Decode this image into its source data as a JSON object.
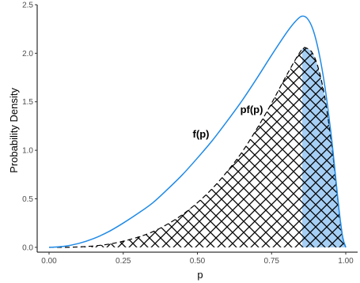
{
  "chart_data": {
    "type": "area",
    "xlabel": "p",
    "ylabel": "Probability Density",
    "xlim": [
      -0.04,
      1.04
    ],
    "ylim": [
      -0.05,
      2.5
    ],
    "x_ticks": [
      0.0,
      0.25,
      0.5,
      0.75,
      1.0
    ],
    "x_tick_labels": [
      "0.00",
      "0.25",
      "0.50",
      "0.75",
      "1.00"
    ],
    "y_ticks": [
      0.0,
      0.5,
      1.0,
      1.5,
      2.0,
      2.5
    ],
    "y_tick_labels": [
      "0.0",
      "0.5",
      "1.0",
      "1.5",
      "2.0",
      "2.5"
    ],
    "grid": false,
    "highlight_region": {
      "x_from": 0.853,
      "x_to": 1.0,
      "color": "#a6cff5"
    },
    "series": [
      {
        "label": "f(p)",
        "style": "solid",
        "color": "#1f8ae6",
        "x": [
          0.0,
          0.05,
          0.1,
          0.15,
          0.2,
          0.25,
          0.3,
          0.35,
          0.4,
          0.45,
          0.5,
          0.55,
          0.6,
          0.65,
          0.7,
          0.75,
          0.8,
          0.825,
          0.85,
          0.87,
          0.89,
          0.91,
          0.93,
          0.95,
          0.96,
          0.97,
          0.98,
          0.99,
          1.0
        ],
        "y": [
          0.0,
          0.01,
          0.04,
          0.09,
          0.16,
          0.25,
          0.35,
          0.46,
          0.6,
          0.75,
          0.92,
          1.1,
          1.3,
          1.51,
          1.74,
          1.98,
          2.21,
          2.31,
          2.38,
          2.36,
          2.24,
          2.0,
          1.65,
          1.18,
          0.9,
          0.6,
          0.32,
          0.1,
          0.0
        ]
      },
      {
        "label": "pf(p)",
        "style": "dashed",
        "color": "#000000",
        "fill": "crosshatch",
        "x": [
          0.0,
          0.05,
          0.1,
          0.15,
          0.2,
          0.25,
          0.3,
          0.35,
          0.4,
          0.45,
          0.5,
          0.55,
          0.6,
          0.65,
          0.7,
          0.75,
          0.8,
          0.85,
          0.87,
          0.89,
          0.91,
          0.93,
          0.95,
          0.96,
          0.97,
          0.98,
          0.99,
          1.0
        ],
        "y": [
          0.0,
          0.0,
          0.004,
          0.014,
          0.032,
          0.063,
          0.105,
          0.161,
          0.24,
          0.338,
          0.46,
          0.605,
          0.78,
          0.98,
          1.22,
          1.485,
          1.77,
          2.03,
          2.05,
          1.99,
          1.82,
          1.535,
          1.12,
          0.864,
          0.58,
          0.314,
          0.1,
          0.0
        ]
      }
    ]
  }
}
